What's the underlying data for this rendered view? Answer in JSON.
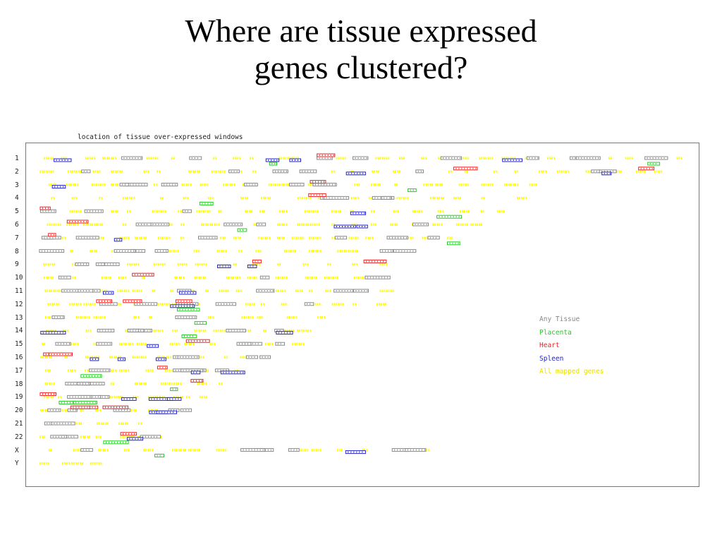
{
  "slide": {
    "title_line1": "Where are tissue expressed",
    "title_line2": "genes clustered?"
  },
  "chart_data": {
    "type": "genome-map",
    "title": "location of tissue over-expressed windows",
    "chromosomes": [
      "1",
      "2",
      "3",
      "4",
      "5",
      "6",
      "7",
      "8",
      "9",
      "10",
      "11",
      "12",
      "13",
      "14",
      "15",
      "16",
      "17",
      "18",
      "19",
      "20",
      "21",
      "22",
      "X",
      "Y"
    ],
    "relative_lengths": [
      1.0,
      0.98,
      0.78,
      0.76,
      0.74,
      0.69,
      0.65,
      0.59,
      0.56,
      0.55,
      0.55,
      0.54,
      0.46,
      0.43,
      0.41,
      0.37,
      0.33,
      0.31,
      0.26,
      0.25,
      0.19,
      0.2,
      0.61,
      0.1
    ],
    "window_density": [
      34,
      30,
      26,
      20,
      24,
      26,
      24,
      18,
      16,
      16,
      22,
      18,
      12,
      14,
      12,
      12,
      12,
      10,
      14,
      10,
      6,
      8,
      18,
      4
    ],
    "tissue_hits": [
      {
        "gray": 9,
        "green": 2,
        "red": 1,
        "blue": 4
      },
      {
        "gray": 7,
        "green": 0,
        "red": 2,
        "blue": 2
      },
      {
        "gray": 6,
        "green": 1,
        "red": 1,
        "blue": 1
      },
      {
        "gray": 4,
        "green": 1,
        "red": 1,
        "blue": 0
      },
      {
        "gray": 3,
        "green": 1,
        "red": 1,
        "blue": 1
      },
      {
        "gray": 6,
        "green": 1,
        "red": 1,
        "blue": 2
      },
      {
        "gray": 7,
        "green": 1,
        "red": 1,
        "blue": 1
      },
      {
        "gray": 6,
        "green": 0,
        "red": 0,
        "blue": 0
      },
      {
        "gray": 3,
        "green": 0,
        "red": 2,
        "blue": 2
      },
      {
        "gray": 3,
        "green": 0,
        "red": 1,
        "blue": 0
      },
      {
        "gray": 8,
        "green": 0,
        "red": 0,
        "blue": 2
      },
      {
        "gray": 5,
        "green": 1,
        "red": 3,
        "blue": 1
      },
      {
        "gray": 2,
        "green": 1,
        "red": 0,
        "blue": 0
      },
      {
        "gray": 6,
        "green": 1,
        "red": 0,
        "blue": 2
      },
      {
        "gray": 5,
        "green": 0,
        "red": 1,
        "blue": 1
      },
      {
        "gray": 4,
        "green": 0,
        "red": 2,
        "blue": 3
      },
      {
        "gray": 5,
        "green": 1,
        "red": 1,
        "blue": 2
      },
      {
        "gray": 3,
        "green": 1,
        "red": 1,
        "blue": 0
      },
      {
        "gray": 3,
        "green": 2,
        "red": 1,
        "blue": 3
      },
      {
        "gray": 5,
        "green": 0,
        "red": 3,
        "blue": 2
      },
      {
        "gray": 2,
        "green": 0,
        "red": 0,
        "blue": 0
      },
      {
        "gray": 3,
        "green": 1,
        "red": 1,
        "blue": 1
      },
      {
        "gray": 6,
        "green": 1,
        "red": 0,
        "blue": 1
      },
      {
        "gray": 0,
        "green": 0,
        "red": 0,
        "blue": 0
      }
    ],
    "legend": [
      {
        "label": "Any Tissue",
        "color": "#888888"
      },
      {
        "label": "Placenta",
        "color": "#22cc22"
      },
      {
        "label": "Heart",
        "color": "#ee2222"
      },
      {
        "label": "Spleen",
        "color": "#2222cc"
      },
      {
        "label": "All mapped genes",
        "color": "#ffff00"
      }
    ]
  }
}
